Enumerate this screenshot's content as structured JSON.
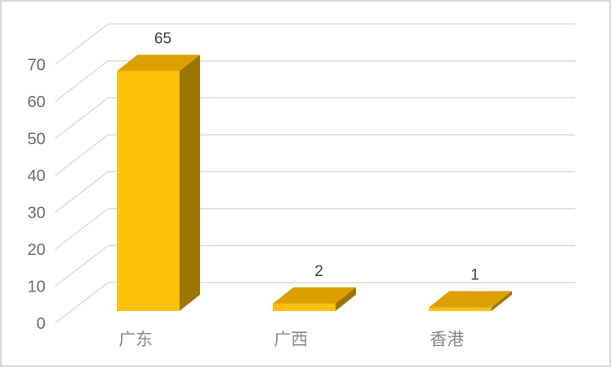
{
  "chart_data": {
    "type": "bar",
    "projection": "3d-column",
    "title": "",
    "xlabel": "",
    "ylabel": "",
    "categories": [
      "广东",
      "广西",
      "香港"
    ],
    "values": [
      65,
      2,
      1
    ],
    "data_labels": [
      "65",
      "2",
      "1"
    ],
    "yticks": [
      "0",
      "10",
      "20",
      "30",
      "40",
      "50",
      "60",
      "70"
    ],
    "ylim": [
      0,
      70
    ],
    "ytick_interval": 10,
    "grid": "horizontal-backwall",
    "legend": "none",
    "colors": {
      "bar_front": "#FFC00A",
      "bar_top": "#DDA001",
      "bar_side": "#9C7500",
      "gridline": "#D9D9D9",
      "axis_text": "#6E6E6E",
      "category_text": "#8A8A8A",
      "data_label_text": "#3F3F3F",
      "background": "#FFFFFF",
      "frame_border": "#D6D6D6"
    }
  }
}
